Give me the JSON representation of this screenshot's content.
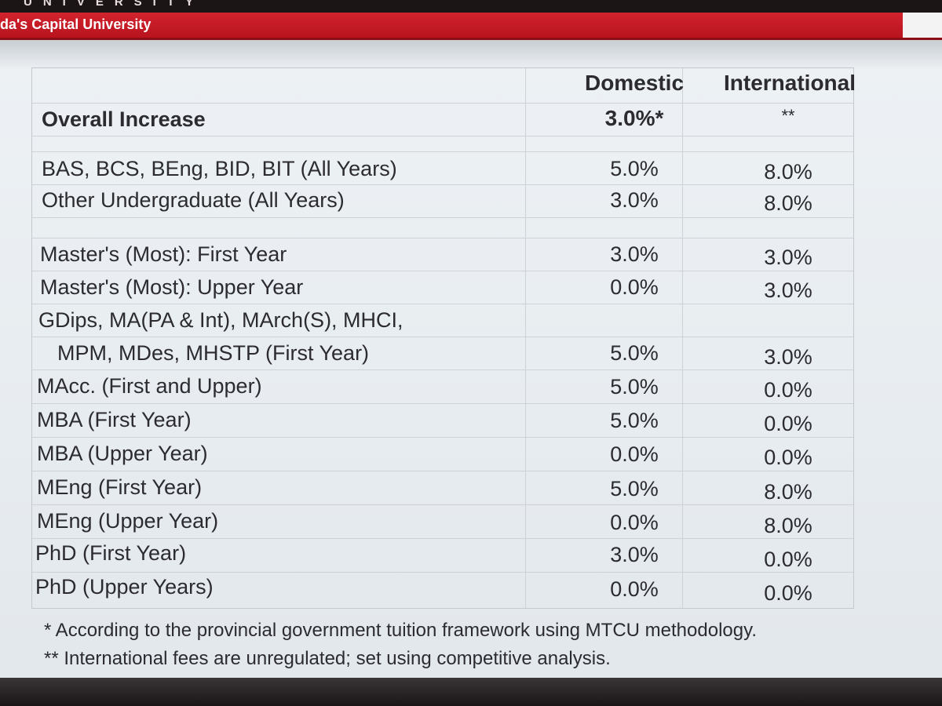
{
  "header": {
    "university_wordmark": "UNIVERSITY",
    "tagline": "da's Capital University"
  },
  "table": {
    "columns": {
      "domestic": "Domestic",
      "international": "International"
    },
    "overall": {
      "label": "Overall Increase",
      "domestic": "3.0%*",
      "international": "**"
    },
    "rows": [
      {
        "label": "BAS, BCS, BEng, BID, BIT (All Years)",
        "domestic": "5.0%",
        "international": "8.0%"
      },
      {
        "label": "Other Undergraduate (All Years)",
        "domestic": "3.0%",
        "international": "8.0%"
      },
      {
        "label": "Master's (Most): First Year",
        "domestic": "3.0%",
        "international": "3.0%"
      },
      {
        "label": "Master's (Most): Upper Year",
        "domestic": "0.0%",
        "international": "3.0%"
      },
      {
        "label": "GDips, MA(PA & Int), MArch(S), MHCI,",
        "domestic": "",
        "international": ""
      },
      {
        "label": "MPM, MDes, MHSTP (First Year)",
        "domestic": "5.0%",
        "international": "3.0%"
      },
      {
        "label": "MAcc. (First and Upper)",
        "domestic": "5.0%",
        "international": "0.0%"
      },
      {
        "label": "MBA  (First Year)",
        "domestic": "5.0%",
        "international": "0.0%"
      },
      {
        "label": "MBA  (Upper Year)",
        "domestic": "0.0%",
        "international": "0.0%"
      },
      {
        "label": "MEng (First Year)",
        "domestic": "5.0%",
        "international": "8.0%"
      },
      {
        "label": "MEng (Upper Year)",
        "domestic": "0.0%",
        "international": "8.0%"
      },
      {
        "label": "PhD (First Year)",
        "domestic": "3.0%",
        "international": "0.0%"
      },
      {
        "label": "PhD (Upper Years)",
        "domestic": "0.0%",
        "international": "0.0%"
      }
    ]
  },
  "footnotes": [
    "* According to the provincial government tuition framework using MTCU methodology.",
    "** International fees are unregulated; set using competitive analysis."
  ]
}
